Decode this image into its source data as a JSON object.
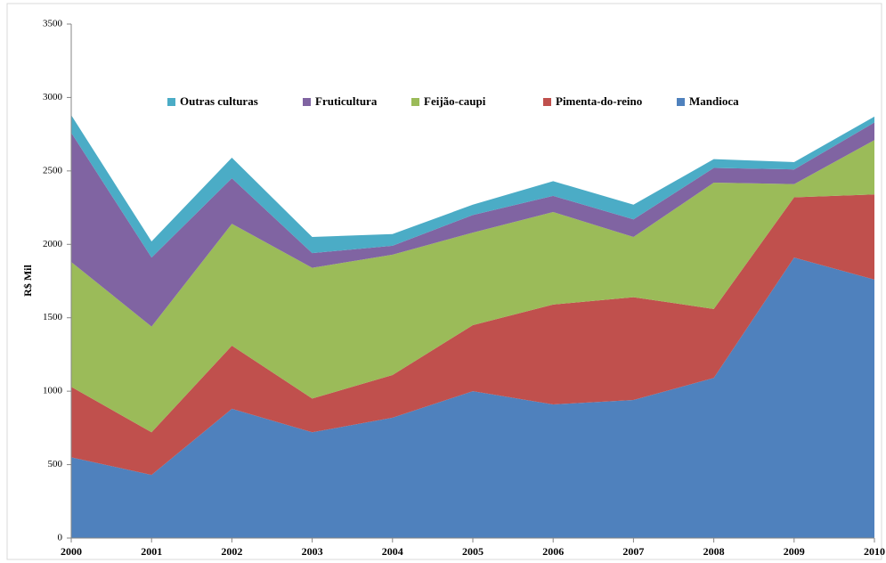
{
  "chart_data": {
    "type": "stacked-area",
    "y_label": "R$ Mil",
    "categories": [
      "2000",
      "2001",
      "2002",
      "2003",
      "2004",
      "2005",
      "2006",
      "2007",
      "2008",
      "2009",
      "2010"
    ],
    "series": [
      {
        "name": "Mandioca",
        "color": "#4f81bd",
        "values": [
          550,
          430,
          880,
          720,
          820,
          1000,
          910,
          940,
          1090,
          1910,
          1760
        ]
      },
      {
        "name": "Pimenta-do-reino",
        "color": "#c0504d",
        "values": [
          480,
          290,
          430,
          230,
          290,
          450,
          680,
          700,
          470,
          410,
          580
        ]
      },
      {
        "name": "Feijão-caupi",
        "color": "#9bbb59",
        "values": [
          850,
          720,
          830,
          890,
          820,
          630,
          630,
          410,
          860,
          90,
          370
        ]
      },
      {
        "name": "Fruticultura",
        "color": "#8064a2",
        "values": [
          880,
          470,
          310,
          100,
          60,
          120,
          110,
          120,
          100,
          100,
          120
        ]
      },
      {
        "name": "Outras culturas",
        "color": "#4bacc6",
        "values": [
          120,
          110,
          140,
          110,
          80,
          70,
          100,
          100,
          60,
          50,
          40
        ]
      }
    ],
    "ylim": [
      0,
      3500
    ],
    "yticks": [
      0,
      500,
      1000,
      1500,
      2000,
      2500,
      3000,
      3500
    ]
  }
}
